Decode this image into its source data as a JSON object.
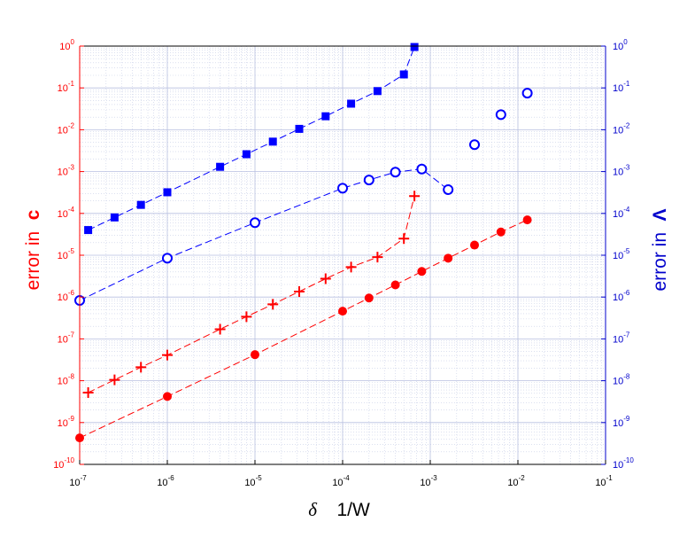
{
  "chart_data": {
    "type": "scatter",
    "xscale": "log",
    "yscale": "log",
    "xlim": [
      1e-07,
      0.1
    ],
    "ylim": [
      1e-10,
      1
    ],
    "grid": true,
    "xlabel": "δ     1/W",
    "xlabel_parts": [
      "δ",
      "1/W"
    ],
    "ylabel_left": "error in  c",
    "ylabel_left_parts": [
      "error in",
      "c"
    ],
    "ylabel_right": "error in  Λ",
    "ylabel_right_parts": [
      "error in",
      "Λ"
    ],
    "left_axis_color": "#ff0000",
    "right_axis_color": "#0000cc",
    "x_tick_exponents": [
      -7,
      -6,
      -5,
      -4,
      -3,
      -2,
      -1
    ],
    "y_tick_exponents": [
      -10,
      -9,
      -8,
      -7,
      -6,
      -5,
      -4,
      -3,
      -2,
      -1,
      0
    ],
    "tick_base": "10",
    "series": [
      {
        "axis": "right",
        "marker": "square",
        "color": "#0000ff",
        "x": [
          1.25e-07,
          2.5e-07,
          5e-07,
          1e-06,
          4e-06,
          8e-06,
          1.6e-05,
          3.2e-05,
          6.4e-05,
          0.000125,
          0.00025,
          0.0005,
          0.00066
        ],
        "y": [
          4e-05,
          8e-05,
          0.00016,
          0.00032,
          0.0013,
          0.0026,
          0.0052,
          0.0105,
          0.021,
          0.042,
          0.084,
          0.21,
          0.95
        ]
      },
      {
        "axis": "right",
        "marker": "circle-open",
        "color": "#0000ff",
        "x": [
          1e-07,
          1e-06,
          1e-05,
          0.0001,
          0.0002,
          0.0004,
          0.0008,
          0.0016
        ],
        "y": [
          8.3e-07,
          8.5e-06,
          6e-05,
          0.0004,
          0.00063,
          0.00097,
          0.00115,
          0.00037
        ]
      },
      {
        "axis": "right",
        "marker": "circle-open",
        "color": "#0000ff",
        "line": false,
        "x": [
          0.0032,
          0.0064,
          0.0128
        ],
        "y": [
          0.0044,
          0.023,
          0.075
        ]
      },
      {
        "axis": "left",
        "marker": "plus",
        "color": "#ff0000",
        "x": [
          1.25e-07,
          2.5e-07,
          5e-07,
          1e-06,
          4e-06,
          8e-06,
          1.6e-05,
          3.2e-05,
          6.4e-05,
          0.000125,
          0.00025,
          0.0005,
          0.00066
        ],
        "y": [
          5.2e-09,
          1.05e-08,
          2.1e-08,
          4.1e-08,
          1.7e-07,
          3.4e-07,
          6.7e-07,
          1.35e-06,
          2.75e-06,
          5.2e-06,
          9e-06,
          2.5e-05,
          0.00026
        ]
      },
      {
        "axis": "left",
        "marker": "circle-filled",
        "color": "#ff0000",
        "x": [
          1e-07,
          1e-06,
          1e-05,
          0.0001,
          0.0002,
          0.0004,
          0.0008,
          0.0016,
          0.0032,
          0.0064,
          0.0128
        ],
        "y": [
          4.3e-10,
          4.2e-09,
          4.2e-08,
          4.6e-07,
          9.5e-07,
          1.95e-06,
          4.1e-06,
          8.5e-06,
          1.75e-05,
          3.6e-05,
          7e-05
        ]
      }
    ]
  }
}
